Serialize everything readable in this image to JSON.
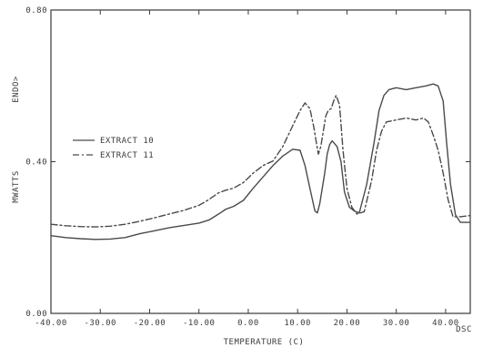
{
  "chart_data": {
    "type": "line",
    "title": "",
    "xlabel": "TEMPERATURE  (C)",
    "ylabel": "MWATTS",
    "y_direction_label": "ENDO>",
    "corner_label": "DSC",
    "xlim": [
      -40,
      45
    ],
    "ylim": [
      0,
      0.8
    ],
    "x_ticks": [
      -40,
      -30,
      -20,
      -10,
      0,
      10,
      20,
      30,
      40
    ],
    "x_tick_labels": [
      "-40.00",
      "-30.00",
      "-20.00",
      "-10.00",
      "0.00",
      "10.00",
      "20.00",
      "30.00",
      "40.00"
    ],
    "y_ticks": [
      0,
      0.4,
      0.8
    ],
    "y_tick_labels": [
      "0.00",
      "0.40",
      "0.80"
    ],
    "grid": false,
    "legend_position": "middle-left",
    "series": [
      {
        "name": "EXTRACT  10",
        "dash": "solid",
        "x": [
          -40,
          -37,
          -34,
          -31,
          -28,
          -25,
          -22,
          -19,
          -16,
          -13,
          -10,
          -8,
          -6,
          -4.5,
          -3,
          -1,
          1,
          3,
          5,
          7,
          9,
          10.5,
          11.5,
          12.5,
          13.5,
          14,
          14.5,
          15,
          15.5,
          16,
          16.5,
          17,
          18,
          18.8,
          19.5,
          20.5,
          21.5,
          22.5,
          24,
          25.5,
          26.5,
          27.5,
          28.5,
          30,
          32,
          34,
          36,
          37.5,
          38.5,
          39.5,
          40.2,
          41,
          42,
          43,
          45
        ],
        "y": [
          0.205,
          0.2,
          0.197,
          0.195,
          0.196,
          0.2,
          0.21,
          0.218,
          0.226,
          0.232,
          0.238,
          0.246,
          0.262,
          0.275,
          0.282,
          0.298,
          0.33,
          0.36,
          0.39,
          0.415,
          0.433,
          0.43,
          0.39,
          0.33,
          0.27,
          0.265,
          0.29,
          0.33,
          0.37,
          0.42,
          0.445,
          0.455,
          0.44,
          0.4,
          0.32,
          0.28,
          0.27,
          0.265,
          0.34,
          0.45,
          0.535,
          0.575,
          0.59,
          0.595,
          0.59,
          0.595,
          0.6,
          0.605,
          0.6,
          0.56,
          0.45,
          0.34,
          0.26,
          0.24,
          0.24
        ]
      },
      {
        "name": "EXTRACT  11",
        "dash": "dash-dot",
        "x": [
          -40,
          -37,
          -34,
          -31,
          -28,
          -25,
          -22,
          -19,
          -16,
          -13,
          -10,
          -8,
          -6,
          -4.5,
          -3,
          -1,
          1,
          3,
          5,
          7,
          9,
          10.5,
          11.5,
          12.5,
          13.3,
          13.8,
          14.2,
          14.7,
          15.2,
          15.7,
          16.2,
          16.8,
          17.3,
          17.8,
          18.5,
          19.2,
          20,
          21,
          22,
          23.5,
          25,
          26,
          27,
          28,
          30,
          32,
          34,
          35.5,
          36.5,
          37.5,
          38.5,
          39.5,
          40.5,
          41.5,
          43,
          45
        ],
        "y": [
          0.235,
          0.231,
          0.229,
          0.228,
          0.23,
          0.235,
          0.243,
          0.252,
          0.262,
          0.272,
          0.285,
          0.3,
          0.318,
          0.325,
          0.33,
          0.345,
          0.37,
          0.39,
          0.402,
          0.44,
          0.495,
          0.535,
          0.555,
          0.54,
          0.49,
          0.45,
          0.42,
          0.44,
          0.48,
          0.52,
          0.535,
          0.54,
          0.56,
          0.575,
          0.55,
          0.43,
          0.33,
          0.28,
          0.262,
          0.268,
          0.35,
          0.43,
          0.48,
          0.505,
          0.51,
          0.515,
          0.51,
          0.515,
          0.505,
          0.47,
          0.43,
          0.37,
          0.3,
          0.255,
          0.255,
          0.258
        ]
      }
    ]
  }
}
